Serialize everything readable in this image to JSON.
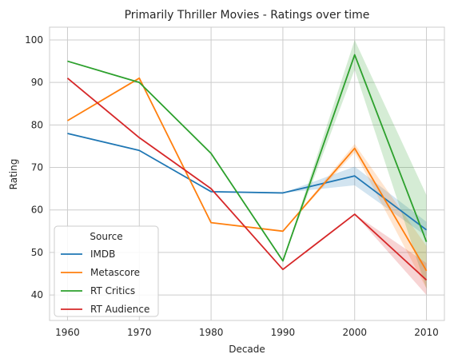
{
  "chart_data": {
    "type": "line",
    "title": "Primarily Thriller Movies - Ratings over time",
    "xlabel": "Decade",
    "ylabel": "Rating",
    "x": [
      1960,
      1970,
      1980,
      1990,
      2000,
      2010
    ],
    "xlim": [
      1957.5,
      2012.5
    ],
    "ylim": [
      34,
      103
    ],
    "xticks": [
      1960,
      1970,
      1980,
      1990,
      2000,
      2010
    ],
    "yticks": [
      40,
      50,
      60,
      70,
      80,
      90,
      100
    ],
    "grid": true,
    "legend": {
      "title": "Source",
      "placement": "lower-left"
    },
    "series": [
      {
        "name": "IMDB",
        "color": "#1f77b4",
        "values": [
          78,
          74,
          64.3,
          64,
          68,
          55.3
        ],
        "ci": [
          null,
          null,
          null,
          null,
          [
            65.8,
            70.2
          ],
          [
            53.8,
            57.2
          ]
        ]
      },
      {
        "name": "Metascore",
        "color": "#ff7f0e",
        "values": [
          81,
          91,
          57,
          55,
          74.5,
          45.7
        ],
        "ci": [
          null,
          null,
          null,
          null,
          [
            73.5,
            75.5
          ],
          [
            41.5,
            51.5
          ]
        ]
      },
      {
        "name": "RT Critics",
        "color": "#2ca02c",
        "values": [
          95,
          90,
          73.3,
          48,
          96.5,
          52.5
        ],
        "ci": [
          null,
          null,
          null,
          null,
          [
            93,
            100
          ],
          [
            41.5,
            63.5
          ]
        ]
      },
      {
        "name": "RT Audience",
        "color": "#d62728",
        "values": [
          91,
          77,
          65,
          46,
          59,
          43.5
        ],
        "ci": [
          null,
          null,
          null,
          null,
          null,
          [
            40,
            47.5
          ]
        ]
      }
    ]
  }
}
